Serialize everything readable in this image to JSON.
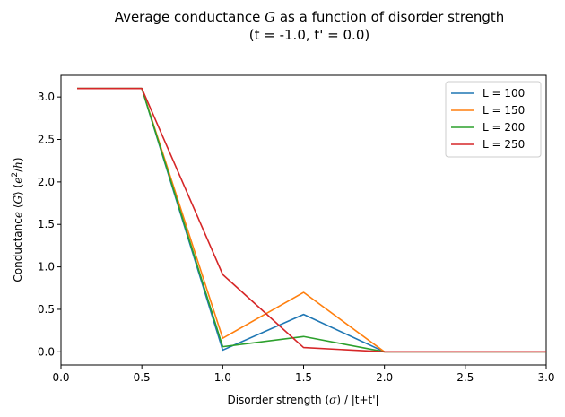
{
  "chart_data": {
    "type": "line",
    "title": "Average conductance G as a function of disorder strength",
    "subtitle": "(t = -1.0, t' =  0.0)",
    "xlabel": "Disorder strength (σ) / |t+t'|",
    "ylabel": "Conductance ⟨G⟩ (e²/h)",
    "xlim": [
      0.0,
      3.0
    ],
    "ylim": [
      -0.155,
      3.255
    ],
    "xticks": [
      0.0,
      0.5,
      1.0,
      1.5,
      2.0,
      2.5,
      3.0
    ],
    "xtick_labels": [
      "0.0",
      "0.5",
      "1.0",
      "1.5",
      "2.0",
      "2.5",
      "3.0"
    ],
    "yticks": [
      0.0,
      0.5,
      1.0,
      1.5,
      2.0,
      2.5,
      3.0
    ],
    "ytick_labels": [
      "0.0",
      "0.5",
      "1.0",
      "1.5",
      "2.0",
      "2.5",
      "3.0"
    ],
    "grid": false,
    "legend_position": "top-right",
    "x": [
      0.1,
      0.5,
      1.0,
      1.5,
      2.0,
      3.0
    ],
    "series": [
      {
        "name": "L = 100",
        "color": "#1f77b4",
        "values": [
          3.1,
          3.1,
          0.02,
          0.44,
          0.0,
          0.0
        ]
      },
      {
        "name": "L = 150",
        "color": "#ff7f0e",
        "values": [
          3.1,
          3.1,
          0.16,
          0.7,
          0.0,
          0.0
        ]
      },
      {
        "name": "L = 200",
        "color": "#2ca02c",
        "values": [
          3.1,
          3.1,
          0.06,
          0.18,
          0.0,
          0.0
        ]
      },
      {
        "name": "L = 250",
        "color": "#d62728",
        "values": [
          3.1,
          3.1,
          0.91,
          0.05,
          0.0,
          0.0
        ]
      }
    ]
  }
}
